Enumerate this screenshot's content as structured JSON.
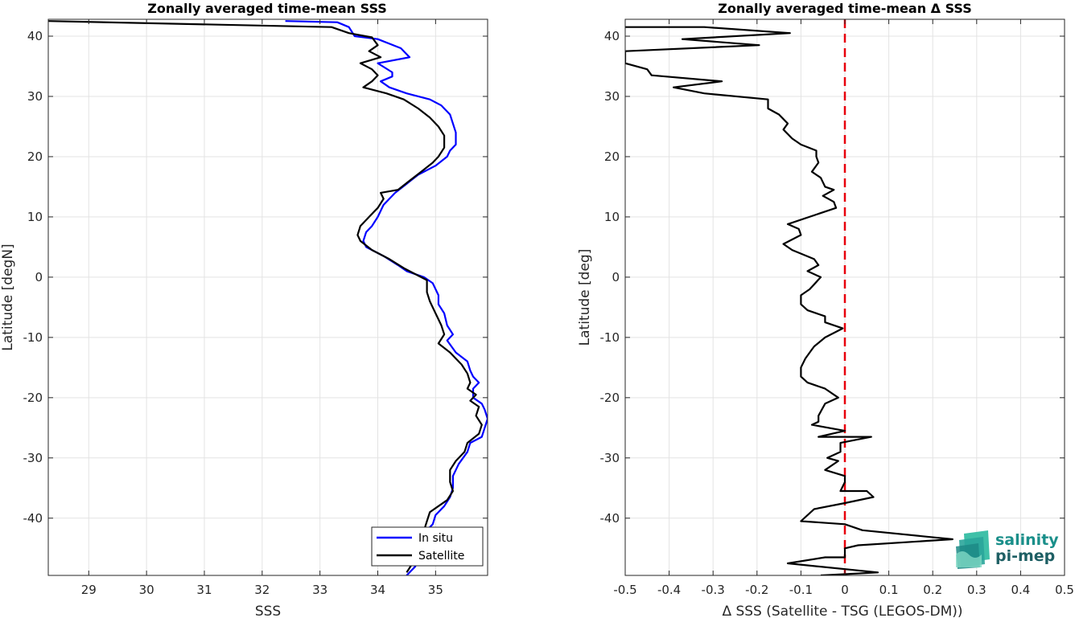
{
  "chart_data": [
    {
      "type": "line",
      "title": "Zonally averaged time-mean SSS",
      "xlabel": "SSS",
      "ylabel": "Latitude [degN]",
      "xlim": [
        28.3,
        35.9
      ],
      "ylim": [
        -49.5,
        42.8
      ],
      "xticks": [
        "29",
        "30",
        "31",
        "32",
        "33",
        "34",
        "35"
      ],
      "xtick_values": [
        29,
        30,
        31,
        32,
        33,
        34,
        35
      ],
      "yticks": [
        "40",
        "30",
        "20",
        "10",
        "0",
        "-10",
        "-20",
        "-30",
        "-40"
      ],
      "ytick_values": [
        40,
        30,
        20,
        10,
        0,
        -10,
        -20,
        -30,
        -40
      ],
      "grid": true,
      "legend_position": "bottom-right",
      "series": [
        {
          "name": "In situ",
          "color": "#0000ff",
          "points": [
            [
              32.4,
              42.5
            ],
            [
              33.3,
              42.3
            ],
            [
              33.5,
              41.5
            ],
            [
              33.6,
              40.0
            ],
            [
              34.0,
              39.5
            ],
            [
              34.4,
              38.0
            ],
            [
              34.55,
              36.5
            ],
            [
              34.0,
              35.5
            ],
            [
              34.25,
              34.0
            ],
            [
              34.25,
              33.3
            ],
            [
              34.05,
              32.5
            ],
            [
              34.2,
              31.5
            ],
            [
              34.5,
              30.5
            ],
            [
              34.9,
              29.5
            ],
            [
              35.1,
              28.5
            ],
            [
              35.25,
              27.0
            ],
            [
              35.3,
              25.5
            ],
            [
              35.35,
              24.0
            ],
            [
              35.35,
              22.0
            ],
            [
              35.25,
              21.0
            ],
            [
              35.2,
              20.0
            ],
            [
              35.0,
              18.5
            ],
            [
              34.7,
              17.0
            ],
            [
              34.5,
              15.5
            ],
            [
              34.3,
              14.0
            ],
            [
              34.2,
              13.0
            ],
            [
              34.1,
              12.0
            ],
            [
              34.0,
              10.0
            ],
            [
              33.9,
              8.5
            ],
            [
              33.8,
              7.5
            ],
            [
              33.75,
              6.0
            ],
            [
              33.8,
              5.0
            ],
            [
              34.1,
              3.5
            ],
            [
              34.35,
              2.0
            ],
            [
              34.5,
              1.0
            ],
            [
              34.8,
              0.0
            ],
            [
              34.95,
              -1.0
            ],
            [
              35.05,
              -3.0
            ],
            [
              35.05,
              -4.5
            ],
            [
              35.15,
              -6.0
            ],
            [
              35.2,
              -8.0
            ],
            [
              35.3,
              -9.5
            ],
            [
              35.2,
              -10.5
            ],
            [
              35.35,
              -12.5
            ],
            [
              35.55,
              -14.0
            ],
            [
              35.6,
              -15.5
            ],
            [
              35.65,
              -16.5
            ],
            [
              35.75,
              -17.5
            ],
            [
              35.65,
              -18.5
            ],
            [
              35.65,
              -20.0
            ],
            [
              35.8,
              -21.0
            ],
            [
              35.85,
              -22.0
            ],
            [
              35.9,
              -23.5
            ],
            [
              35.85,
              -25.0
            ],
            [
              35.8,
              -26.5
            ],
            [
              35.6,
              -27.5
            ],
            [
              35.55,
              -29.0
            ],
            [
              35.4,
              -31.0
            ],
            [
              35.3,
              -33.0
            ],
            [
              35.3,
              -35.0
            ],
            [
              35.25,
              -36.5
            ],
            [
              35.15,
              -38.0
            ],
            [
              35.0,
              -39.5
            ],
            [
              34.95,
              -41.0
            ],
            [
              34.8,
              -42.5
            ],
            [
              34.75,
              -44.0
            ],
            [
              34.7,
              -46.0
            ],
            [
              34.65,
              -48.0
            ],
            [
              34.5,
              -49.5
            ]
          ]
        },
        {
          "name": "Satellite",
          "color": "#000000",
          "points": [
            [
              28.3,
              42.5
            ],
            [
              33.2,
              41.5
            ],
            [
              33.5,
              40.5
            ],
            [
              33.9,
              39.8
            ],
            [
              34.0,
              38.5
            ],
            [
              33.85,
              37.5
            ],
            [
              34.05,
              36.5
            ],
            [
              33.7,
              35.5
            ],
            [
              33.9,
              34.5
            ],
            [
              34.0,
              33.5
            ],
            [
              33.9,
              32.5
            ],
            [
              33.75,
              31.5
            ],
            [
              34.15,
              30.5
            ],
            [
              34.45,
              29.5
            ],
            [
              34.7,
              28.0
            ],
            [
              34.9,
              26.5
            ],
            [
              35.05,
              25.0
            ],
            [
              35.15,
              23.5
            ],
            [
              35.15,
              21.5
            ],
            [
              35.05,
              20.0
            ],
            [
              34.95,
              19.0
            ],
            [
              34.75,
              17.5
            ],
            [
              34.55,
              16.0
            ],
            [
              34.35,
              14.5
            ],
            [
              34.05,
              14.0
            ],
            [
              34.1,
              13.0
            ],
            [
              34.0,
              11.5
            ],
            [
              33.85,
              10.0
            ],
            [
              33.7,
              8.5
            ],
            [
              33.65,
              7.0
            ],
            [
              33.7,
              6.0
            ],
            [
              33.9,
              4.5
            ],
            [
              34.2,
              3.0
            ],
            [
              34.45,
              1.5
            ],
            [
              34.75,
              0.0
            ],
            [
              34.85,
              -0.5
            ],
            [
              34.85,
              -2.5
            ],
            [
              34.9,
              -4.0
            ],
            [
              35.0,
              -6.0
            ],
            [
              35.1,
              -8.0
            ],
            [
              35.15,
              -9.5
            ],
            [
              35.05,
              -11.0
            ],
            [
              35.25,
              -12.5
            ],
            [
              35.45,
              -14.5
            ],
            [
              35.55,
              -16.0
            ],
            [
              35.6,
              -17.5
            ],
            [
              35.55,
              -18.5
            ],
            [
              35.7,
              -19.5
            ],
            [
              35.6,
              -20.5
            ],
            [
              35.75,
              -21.5
            ],
            [
              35.7,
              -23.0
            ],
            [
              35.8,
              -24.5
            ],
            [
              35.75,
              -26.0
            ],
            [
              35.55,
              -27.5
            ],
            [
              35.5,
              -29.0
            ],
            [
              35.35,
              -30.5
            ],
            [
              35.25,
              -32.0
            ],
            [
              35.25,
              -34.0
            ],
            [
              35.3,
              -35.5
            ],
            [
              35.2,
              -37.0
            ],
            [
              35.05,
              -38.0
            ],
            [
              34.9,
              -39.0
            ],
            [
              34.85,
              -40.5
            ],
            [
              34.8,
              -42.0
            ],
            [
              34.7,
              -43.5
            ],
            [
              34.65,
              -45.5
            ],
            [
              34.6,
              -47.5
            ],
            [
              34.5,
              -49.0
            ]
          ]
        }
      ]
    },
    {
      "type": "line",
      "title": "Zonally averaged time-mean Δ SSS",
      "xlabel": "Δ SSS (Satellite - TSG (LEGOS-DM))",
      "ylabel": "Latitude [deg]",
      "xlim": [
        -0.5,
        0.5
      ],
      "ylim": [
        -49.5,
        42.8
      ],
      "xticks": [
        "-0.5",
        "-0.4",
        "-0.3",
        "-0.2",
        "-0.1",
        "0",
        "0.1",
        "0.2",
        "0.3",
        "0.4",
        "0.5"
      ],
      "xtick_values": [
        -0.5,
        -0.4,
        -0.3,
        -0.2,
        -0.1,
        0,
        0.1,
        0.2,
        0.3,
        0.4,
        0.5
      ],
      "yticks": [
        "40",
        "30",
        "20",
        "10",
        "0",
        "-10",
        "-20",
        "-30",
        "-40"
      ],
      "ytick_values": [
        40,
        30,
        20,
        10,
        0,
        -10,
        -20,
        -30,
        -40
      ],
      "grid": true,
      "reference_line": {
        "x": 0,
        "color": "#e8000b",
        "style": "dashed"
      },
      "series": [
        {
          "name": "",
          "color": "#000000",
          "points": [
            [
              -0.5,
              41.5
            ],
            [
              -0.32,
              41.5
            ],
            [
              -0.125,
              40.5
            ],
            [
              -0.37,
              39.5
            ],
            [
              -0.195,
              38.5
            ],
            [
              -0.5,
              37.5
            ],
            [
              -0.5,
              35.5
            ],
            [
              -0.45,
              34.5
            ],
            [
              -0.44,
              33.5
            ],
            [
              -0.28,
              32.5
            ],
            [
              -0.39,
              31.5
            ],
            [
              -0.32,
              30.5
            ],
            [
              -0.175,
              29.5
            ],
            [
              -0.175,
              28.0
            ],
            [
              -0.15,
              27.0
            ],
            [
              -0.13,
              25.5
            ],
            [
              -0.14,
              24.5
            ],
            [
              -0.12,
              23.0
            ],
            [
              -0.1,
              22.0
            ],
            [
              -0.065,
              21.0
            ],
            [
              -0.065,
              20.0
            ],
            [
              -0.06,
              19.0
            ],
            [
              -0.075,
              17.5
            ],
            [
              -0.055,
              16.5
            ],
            [
              -0.045,
              15.0
            ],
            [
              -0.025,
              14.5
            ],
            [
              -0.05,
              13.5
            ],
            [
              -0.025,
              12.5
            ],
            [
              -0.02,
              11.5
            ],
            [
              -0.13,
              8.8
            ],
            [
              -0.105,
              8.0
            ],
            [
              -0.1,
              7.0
            ],
            [
              -0.14,
              5.5
            ],
            [
              -0.12,
              4.5
            ],
            [
              -0.07,
              3.0
            ],
            [
              -0.06,
              2.0
            ],
            [
              -0.085,
              1.0
            ],
            [
              -0.055,
              0.0
            ],
            [
              -0.08,
              -2.0
            ],
            [
              -0.1,
              -3.0
            ],
            [
              -0.1,
              -4.5
            ],
            [
              -0.085,
              -5.5
            ],
            [
              -0.045,
              -6.5
            ],
            [
              -0.045,
              -7.5
            ],
            [
              -0.005,
              -8.5
            ],
            [
              -0.045,
              -10.0
            ],
            [
              -0.07,
              -11.5
            ],
            [
              -0.075,
              -12.0
            ],
            [
              -0.09,
              -13.5
            ],
            [
              -0.1,
              -15.0
            ],
            [
              -0.1,
              -16.5
            ],
            [
              -0.085,
              -17.5
            ],
            [
              -0.045,
              -18.5
            ],
            [
              -0.015,
              -20.0
            ],
            [
              -0.045,
              -21.0
            ],
            [
              -0.06,
              -23.0
            ],
            [
              -0.06,
              -24.0
            ],
            [
              -0.075,
              -24.5
            ],
            [
              0.0,
              -25.5
            ],
            [
              -0.06,
              -26.5
            ],
            [
              0.06,
              -26.5
            ],
            [
              -0.01,
              -27.5
            ],
            [
              -0.01,
              -29.0
            ],
            [
              -0.04,
              -30.0
            ],
            [
              -0.015,
              -30.5
            ],
            [
              -0.045,
              -32.0
            ],
            [
              0.0,
              -33.0
            ],
            [
              0.0,
              -34.0
            ],
            [
              -0.01,
              -35.5
            ],
            [
              0.05,
              -35.5
            ],
            [
              0.065,
              -36.5
            ],
            [
              0.0,
              -37.5
            ],
            [
              -0.07,
              -38.5
            ],
            [
              -0.1,
              -40.5
            ],
            [
              0.0,
              -41.0
            ],
            [
              0.04,
              -42.0
            ],
            [
              0.245,
              -43.5
            ],
            [
              0.03,
              -44.5
            ],
            [
              0.0,
              -45.0
            ],
            [
              0.0,
              -46.5
            ],
            [
              -0.045,
              -46.5
            ],
            [
              -0.13,
              -47.5
            ],
            [
              0.075,
              -49.0
            ],
            [
              -0.055,
              -49.5
            ]
          ]
        }
      ]
    }
  ],
  "logo": {
    "line1": "salinity",
    "line2": "pi-mep",
    "color1": "#1a9b94",
    "color2": "#1e5f64"
  }
}
